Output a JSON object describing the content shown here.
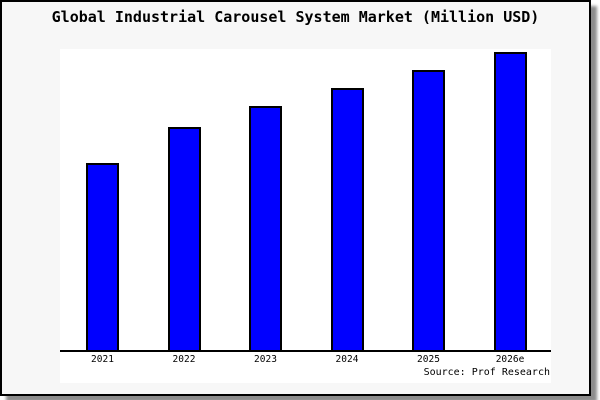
{
  "title": "Global Industrial Carousel System Market (Million USD)",
  "source_credit": "Source: Prof Research",
  "colors": {
    "bar_fill": "#0000ff",
    "bar_border": "#000000",
    "figure_background": "#f7f7f7",
    "plot_background": "#ffffff",
    "axis": "#000000",
    "frame_border": "#000000",
    "frame_shadow": "#8e8e8e"
  },
  "chart_data": {
    "type": "bar",
    "title": "Global Industrial Carousel System Market (Million USD)",
    "categories": [
      "2021",
      "2022",
      "2023",
      "2024",
      "2025",
      "2026e"
    ],
    "values": [
      63,
      75,
      82,
      88,
      94,
      100
    ],
    "values_unit": "relative estimate (no y-axis tick labels shown; tallest bar 2026e normalized to 100)",
    "xlabel": "",
    "ylabel": "",
    "ylim": [
      0,
      101
    ],
    "grid": false,
    "legend": false,
    "bar_color": "#0000ff",
    "annotations": [
      "Source: Prof Research"
    ]
  }
}
